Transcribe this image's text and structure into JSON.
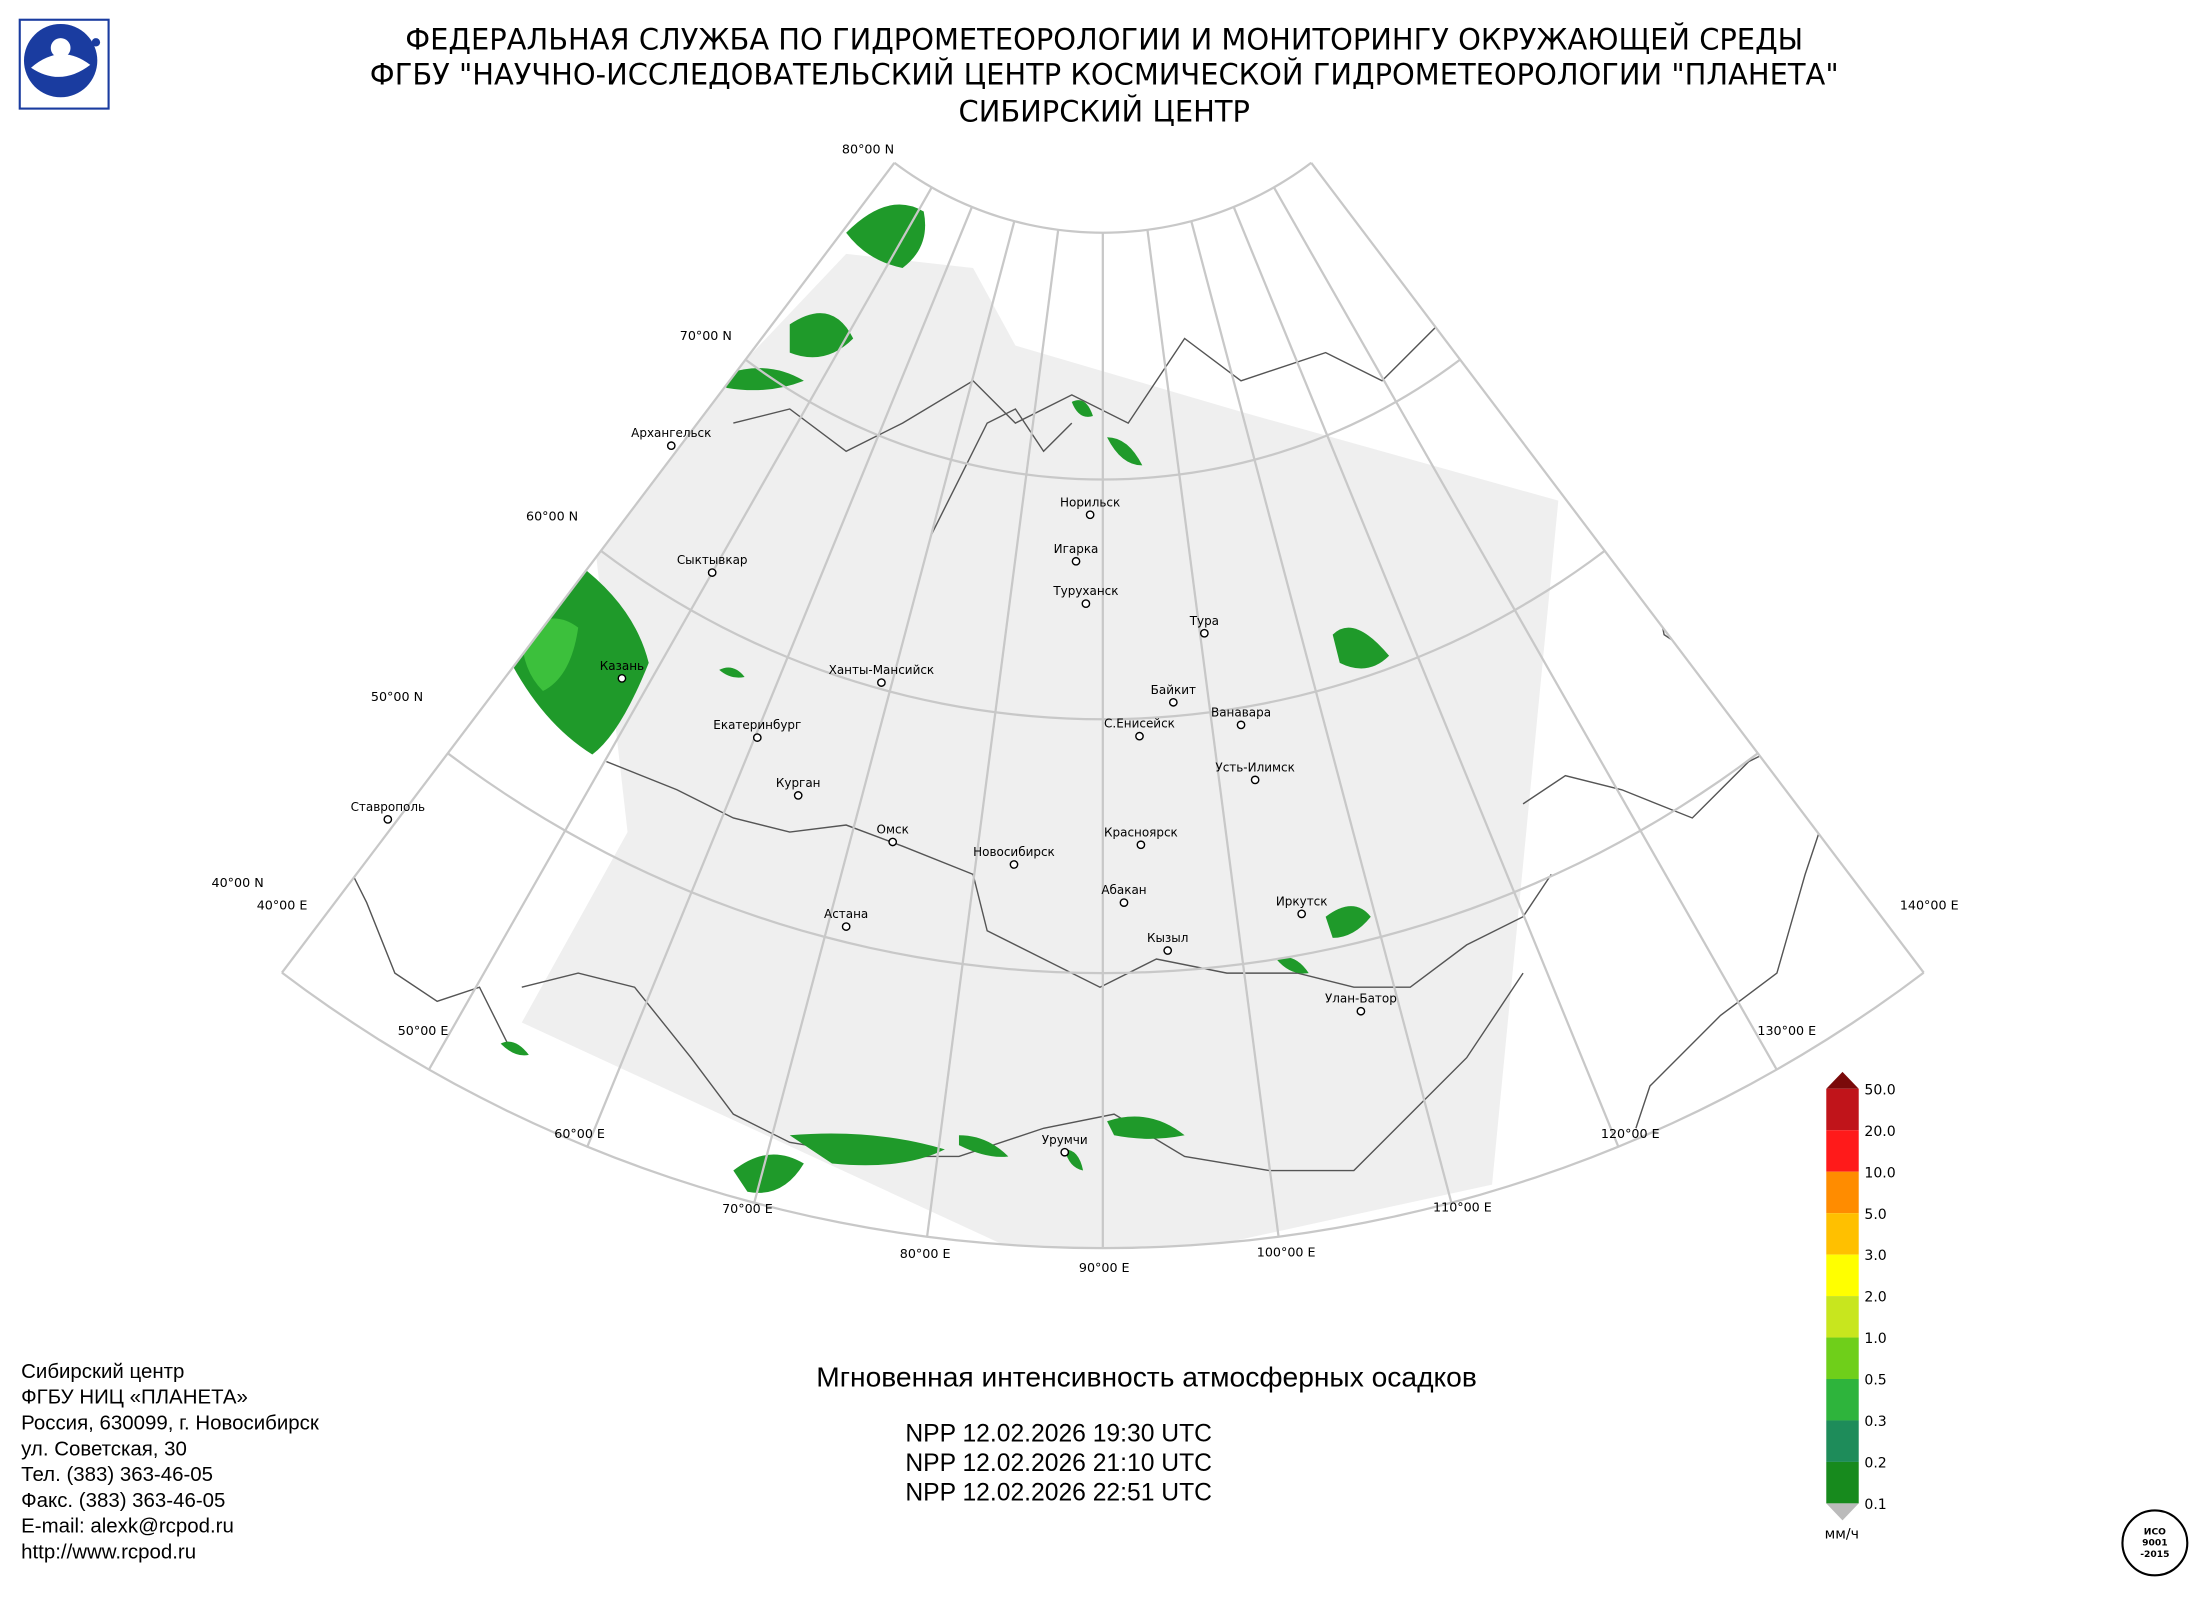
{
  "header": {
    "lines": [
      "ФЕДЕРАЛЬНАЯ СЛУЖБА ПО ГИДРОМЕТЕОРОЛОГИИ И МОНИТОРИНГУ ОКРУЖАЮЩЕЙ СРЕДЫ",
      "ФГБУ \"НАУЧНО-ИССЛЕДОВАТЕЛЬСКИЙ ЦЕНТР КОСМИЧЕСКОЙ ГИДРОМЕТЕОРОЛОГИИ \"ПЛАНЕТА\"",
      "СИБИРСКИЙ ЦЕНТР"
    ]
  },
  "map": {
    "lat_labels": [
      "80°00 N",
      "70°00 N",
      "60°00 N",
      "50°00 N",
      "40°00 N"
    ],
    "lon_labels": [
      "40°00 E",
      "50°00 E",
      "60°00 E",
      "70°00 E",
      "80°00 E",
      "90°00 E",
      "100°00 E",
      "110°00 E",
      "120°00 E",
      "130°00 E",
      "140°00 E"
    ],
    "cities": [
      "Архангельск",
      "Сыктывкар",
      "Казань",
      "Екатеринбург",
      "Курган",
      "Ханты-Мансийск",
      "Омск",
      "Новосибирск",
      "Астана",
      "Ставрополь",
      "Норильск",
      "Игарка",
      "Туруханск",
      "Тура",
      "Байкит",
      "Ванавара",
      "С.Енисейск",
      "Усть-Илимск",
      "Красноярск",
      "Абакан",
      "Кызыл",
      "Иркутск",
      "Улан-Батор",
      "Урумчи"
    ]
  },
  "colorbar": {
    "labels": [
      "50.0",
      "20.0",
      "10.0",
      "5.0",
      "3.0",
      "2.0",
      "1.0",
      "0.5",
      "0.3",
      "0.2",
      "0.1"
    ],
    "unit": "мм/ч"
  },
  "title": "Мгновенная интенсивность атмосферных осадков",
  "passes": [
    "NPP 12.02.2026  19:30 UTC",
    "NPP 12.02.2026  21:10 UTC",
    "NPP 12.02.2026  22:51 UTC"
  ],
  "contacts": [
    "Сибирский центр",
    "ФГБУ НИЦ «ПЛАНЕТА»",
    "Россия, 630099, г. Новосибирск",
    "ул. Советская, 30",
    "Тел. (383) 363-46-05",
    "Факс. (383) 363-46-05",
    "E-mail: alexk@rcpod.ru",
    "http://www.rcpod.ru"
  ],
  "iso": [
    "ИСО",
    "9001",
    "-2015"
  ]
}
